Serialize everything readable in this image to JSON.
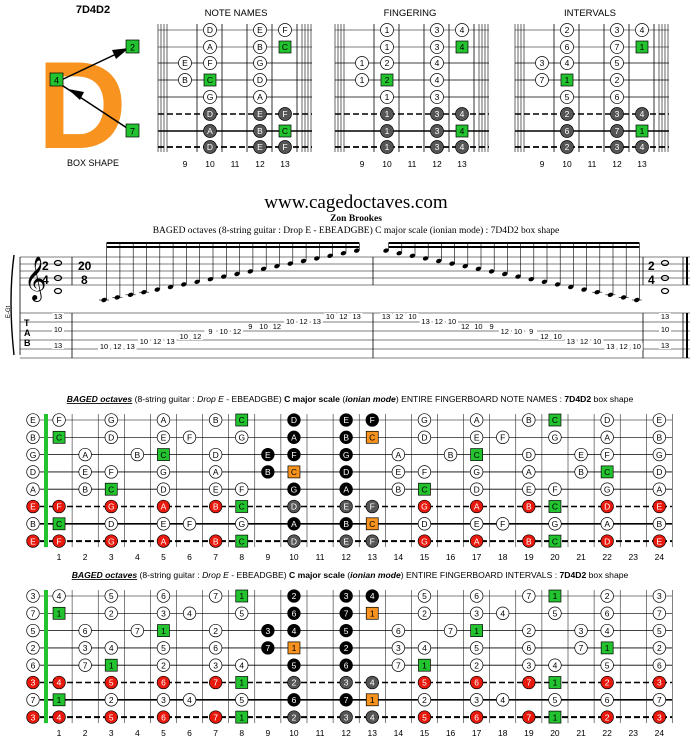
{
  "header": {
    "code": "7D4D2",
    "box_shape_caption": "BOX SHAPE",
    "box_letter": "D",
    "box_markers": [
      "2",
      "4",
      "7"
    ],
    "diagram_titles": [
      "NOTE NAMES",
      "FINGERING",
      "INTERVALS"
    ],
    "fret_numbers": [
      "9",
      "10",
      "11",
      "12",
      "13"
    ]
  },
  "box_diagrams": {
    "note_names": [
      [
        "",
        "D",
        "",
        "E",
        "F"
      ],
      [
        "",
        "A",
        "",
        "B",
        "C"
      ],
      [
        "E",
        "F",
        "",
        "G",
        ""
      ],
      [
        "B",
        "C",
        "",
        "D",
        ""
      ],
      [
        "",
        "G",
        "",
        "A",
        ""
      ],
      [
        "",
        "D",
        "",
        "E",
        "F"
      ],
      [
        "",
        "A",
        "",
        "B",
        "C"
      ],
      [
        "",
        "D",
        "",
        "E",
        "F"
      ]
    ],
    "fingering": [
      [
        "",
        "1",
        "",
        "3",
        "4"
      ],
      [
        "",
        "1",
        "",
        "3",
        "4"
      ],
      [
        "1",
        "2",
        "",
        "4",
        ""
      ],
      [
        "1",
        "2",
        "",
        "4",
        ""
      ],
      [
        "",
        "1",
        "",
        "3",
        ""
      ],
      [
        "",
        "1",
        "",
        "3",
        "4"
      ],
      [
        "",
        "1",
        "",
        "3",
        "4"
      ],
      [
        "",
        "1",
        "",
        "3",
        "4"
      ]
    ],
    "intervals": [
      [
        "",
        "2",
        "",
        "3",
        "4"
      ],
      [
        "",
        "6",
        "",
        "7",
        "1"
      ],
      [
        "3",
        "4",
        "",
        "5",
        ""
      ],
      [
        "7",
        "1",
        "",
        "2",
        ""
      ],
      [
        "",
        "5",
        "",
        "6",
        ""
      ],
      [
        "",
        "2",
        "",
        "3",
        "4"
      ],
      [
        "",
        "6",
        "",
        "7",
        "1"
      ],
      [
        "",
        "2",
        "",
        "3",
        "4"
      ]
    ]
  },
  "titles": {
    "site": "www.cagedoctaves.com",
    "author": "Zon Brookes",
    "subtitle": "BAGED octaves (8-string guitar : Drop E - EBEADGBE) C major scale (ionian mode) : 7D4D2 box shape"
  },
  "score": {
    "time_sig_start": [
      "2",
      "4"
    ],
    "time_sig_mid": [
      "20",
      "8"
    ],
    "time_sig_end": [
      "2",
      "4"
    ],
    "tab_letters": [
      "T",
      "A",
      "B"
    ],
    "side_label": "E-Gt",
    "chord_start": [
      "13",
      "10",
      "13"
    ],
    "chord_end": [
      "13",
      "10",
      "13"
    ],
    "asc": [
      {
        "n": "10",
        "s": 7
      },
      {
        "n": "12",
        "s": 7
      },
      {
        "n": "13",
        "s": 7
      },
      {
        "n": "10",
        "s": 6
      },
      {
        "n": "12",
        "s": 6
      },
      {
        "n": "13",
        "s": 6
      },
      {
        "n": "10",
        "s": 5
      },
      {
        "n": "12",
        "s": 5
      },
      {
        "n": "9",
        "s": 4
      },
      {
        "n": "10",
        "s": 4
      },
      {
        "n": "12",
        "s": 4
      },
      {
        "n": "9",
        "s": 3
      },
      {
        "n": "10",
        "s": 3
      },
      {
        "n": "12",
        "s": 3
      },
      {
        "n": "10",
        "s": 2
      },
      {
        "n": "12",
        "s": 2
      },
      {
        "n": "13",
        "s": 2
      },
      {
        "n": "10",
        "s": 1
      },
      {
        "n": "12",
        "s": 1
      },
      {
        "n": "13",
        "s": 1
      }
    ],
    "desc": [
      {
        "n": "13",
        "s": 1
      },
      {
        "n": "12",
        "s": 1
      },
      {
        "n": "10",
        "s": 1
      },
      {
        "n": "13",
        "s": 2
      },
      {
        "n": "12",
        "s": 2
      },
      {
        "n": "10",
        "s": 2
      },
      {
        "n": "12",
        "s": 3
      },
      {
        "n": "10",
        "s": 3
      },
      {
        "n": "9",
        "s": 3
      },
      {
        "n": "12",
        "s": 4
      },
      {
        "n": "10",
        "s": 4
      },
      {
        "n": "9",
        "s": 4
      },
      {
        "n": "12",
        "s": 5
      },
      {
        "n": "10",
        "s": 5
      },
      {
        "n": "13",
        "s": 6
      },
      {
        "n": "12",
        "s": 6
      },
      {
        "n": "10",
        "s": 6
      },
      {
        "n": "13",
        "s": 7
      },
      {
        "n": "12",
        "s": 7
      },
      {
        "n": "10",
        "s": 7
      }
    ]
  },
  "note_board": {
    "title_parts": [
      "BAGED octaves",
      " (8-string guitar : ",
      "Drop E",
      " - EBEADGBE) ",
      "C major scale",
      " (",
      "ionian mode",
      ") ENTIRE FINGERBOARD NOTE NAMES : ",
      "7D4D2",
      " box shape"
    ],
    "open": [
      "E",
      "B",
      "G",
      "D",
      "A",
      "E",
      "B",
      "E"
    ],
    "rows": [
      [
        "F",
        "",
        "G",
        "",
        "A",
        "",
        "B",
        "C",
        "",
        "D",
        "",
        "E",
        "F",
        "",
        "G",
        "",
        "A",
        "",
        "B",
        "C",
        "",
        "D",
        "",
        "E"
      ],
      [
        "C",
        "",
        "D",
        "",
        "E",
        "F",
        "",
        "G",
        "",
        "A",
        "",
        "B",
        "C",
        "",
        "D",
        "",
        "E",
        "F",
        "",
        "G",
        "",
        "A",
        "",
        "B"
      ],
      [
        "",
        "A",
        "",
        "B",
        "C",
        "",
        "D",
        "",
        "E",
        "F",
        "",
        "G",
        "",
        "A",
        "",
        "B",
        "C",
        "",
        "D",
        "",
        "E",
        "F",
        "",
        "G"
      ],
      [
        "",
        "E",
        "F",
        "",
        "G",
        "",
        "A",
        "",
        "B",
        "C",
        "",
        "D",
        "",
        "E",
        "F",
        "",
        "G",
        "",
        "A",
        "",
        "B",
        "C",
        "",
        "D"
      ],
      [
        "",
        "B",
        "C",
        "",
        "D",
        "",
        "E",
        "F",
        "",
        "G",
        "",
        "A",
        "",
        "B",
        "C",
        "",
        "D",
        "",
        "E",
        "F",
        "",
        "G",
        "",
        "A"
      ],
      [
        "F",
        "",
        "G",
        "",
        "A",
        "",
        "B",
        "C",
        "",
        "D",
        "",
        "E",
        "F",
        "",
        "G",
        "",
        "A",
        "",
        "B",
        "C",
        "",
        "D",
        "",
        "E"
      ],
      [
        "C",
        "",
        "D",
        "",
        "E",
        "F",
        "",
        "G",
        "",
        "A",
        "",
        "B",
        "C",
        "",
        "D",
        "",
        "E",
        "F",
        "",
        "G",
        "",
        "A",
        "",
        "B"
      ],
      [
        "F",
        "",
        "G",
        "",
        "A",
        "",
        "B",
        "C",
        "",
        "D",
        "",
        "E",
        "F",
        "",
        "G",
        "",
        "A",
        "",
        "B",
        "C",
        "",
        "D",
        "",
        "E"
      ]
    ],
    "open_styles": [
      "w",
      "w",
      "w",
      "w",
      "w",
      "r",
      "w",
      "r"
    ],
    "styles": [
      [
        "w",
        "",
        "w",
        "",
        "w",
        "",
        "w",
        "g",
        "",
        "k",
        "",
        "k",
        "k",
        "",
        "w",
        "",
        "w",
        "",
        "w",
        "g",
        "",
        "w",
        "",
        "w"
      ],
      [
        "g",
        "",
        "w",
        "",
        "w",
        "w",
        "",
        "w",
        "",
        "k",
        "",
        "k",
        "o",
        "",
        "w",
        "",
        "w",
        "w",
        "",
        "w",
        "",
        "w",
        "",
        "w"
      ],
      [
        "",
        "w",
        "",
        "w",
        "g",
        "",
        "w",
        "",
        "k",
        "k",
        "",
        "k",
        "",
        "w",
        "",
        "w",
        "g",
        "",
        "w",
        "",
        "w",
        "w",
        "",
        "w"
      ],
      [
        "",
        "w",
        "w",
        "",
        "w",
        "",
        "w",
        "",
        "k",
        "o",
        "",
        "k",
        "",
        "w",
        "w",
        "",
        "w",
        "",
        "w",
        "",
        "w",
        "g",
        "",
        "w"
      ],
      [
        "",
        "w",
        "g",
        "",
        "w",
        "",
        "w",
        "w",
        "",
        "k",
        "",
        "k",
        "",
        "w",
        "g",
        "",
        "w",
        "",
        "w",
        "w",
        "",
        "w",
        "",
        "w"
      ],
      [
        "r",
        "",
        "r",
        "",
        "r",
        "",
        "r",
        "g",
        "",
        "d",
        "",
        "d",
        "d",
        "",
        "r",
        "",
        "r",
        "",
        "r",
        "g",
        "",
        "r",
        "",
        "r"
      ],
      [
        "g",
        "",
        "w",
        "",
        "w",
        "w",
        "",
        "w",
        "",
        "k",
        "",
        "k",
        "o",
        "",
        "w",
        "",
        "w",
        "w",
        "",
        "w",
        "",
        "w",
        "",
        "w"
      ],
      [
        "r",
        "",
        "r",
        "",
        "r",
        "",
        "r",
        "g",
        "",
        "d",
        "",
        "d",
        "d",
        "",
        "r",
        "",
        "r",
        "",
        "r",
        "g",
        "",
        "r",
        "",
        "r"
      ]
    ],
    "fret_numbers": [
      "1",
      "2",
      "3",
      "4",
      "5",
      "6",
      "7",
      "8",
      "9",
      "10",
      "11",
      "12",
      "13",
      "14",
      "15",
      "16",
      "17",
      "18",
      "19",
      "20",
      "21",
      "22",
      "23",
      "24"
    ]
  },
  "interval_board": {
    "title_parts": [
      "BAGED octaves",
      " (8-string guitar : ",
      "Drop E",
      " - EBEADGBE) ",
      "C major scale",
      " (",
      "ionian mode",
      ") ENTIRE FINGERBOARD INTERVALS : ",
      "7D4D2",
      " box shape"
    ],
    "open": [
      "3",
      "7",
      "5",
      "2",
      "6",
      "3",
      "7",
      "3"
    ],
    "rows": [
      [
        "4",
        "",
        "5",
        "",
        "6",
        "",
        "7",
        "1",
        "",
        "2",
        "",
        "3",
        "4",
        "",
        "5",
        "",
        "6",
        "",
        "7",
        "1",
        "",
        "2",
        "",
        "3"
      ],
      [
        "1",
        "",
        "2",
        "",
        "3",
        "4",
        "",
        "5",
        "",
        "6",
        "",
        "7",
        "1",
        "",
        "2",
        "",
        "3",
        "4",
        "",
        "5",
        "",
        "6",
        "",
        "7"
      ],
      [
        "",
        "6",
        "",
        "7",
        "1",
        "",
        "2",
        "",
        "3",
        "4",
        "",
        "5",
        "",
        "6",
        "",
        "7",
        "1",
        "",
        "2",
        "",
        "3",
        "4",
        "",
        "5"
      ],
      [
        "",
        "3",
        "4",
        "",
        "5",
        "",
        "6",
        "",
        "7",
        "1",
        "",
        "2",
        "",
        "3",
        "4",
        "",
        "5",
        "",
        "6",
        "",
        "7",
        "1",
        "",
        "2"
      ],
      [
        "",
        "7",
        "1",
        "",
        "2",
        "",
        "3",
        "4",
        "",
        "5",
        "",
        "6",
        "",
        "7",
        "1",
        "",
        "2",
        "",
        "3",
        "4",
        "",
        "5",
        "",
        "6"
      ],
      [
        "4",
        "",
        "5",
        "",
        "6",
        "",
        "7",
        "1",
        "",
        "2",
        "",
        "3",
        "4",
        "",
        "5",
        "",
        "6",
        "",
        "7",
        "1",
        "",
        "2",
        "",
        "3"
      ],
      [
        "1",
        "",
        "2",
        "",
        "3",
        "4",
        "",
        "5",
        "",
        "6",
        "",
        "7",
        "1",
        "",
        "2",
        "",
        "3",
        "4",
        "",
        "5",
        "",
        "6",
        "",
        "7"
      ],
      [
        "4",
        "",
        "5",
        "",
        "6",
        "",
        "7",
        "1",
        "",
        "2",
        "",
        "3",
        "4",
        "",
        "5",
        "",
        "6",
        "",
        "7",
        "1",
        "",
        "2",
        "",
        "3"
      ]
    ],
    "fret_numbers": [
      "1",
      "2",
      "3",
      "4",
      "5",
      "6",
      "7",
      "8",
      "9",
      "10",
      "11",
      "12",
      "13",
      "14",
      "15",
      "16",
      "17",
      "18",
      "19",
      "20",
      "21",
      "22",
      "23",
      "24"
    ]
  },
  "colors": {
    "orange": "#f7931e",
    "green": "#22c32e",
    "red": "#e8180c",
    "black": "#000000",
    "dark_gray": "#555555",
    "line": "#000000"
  }
}
